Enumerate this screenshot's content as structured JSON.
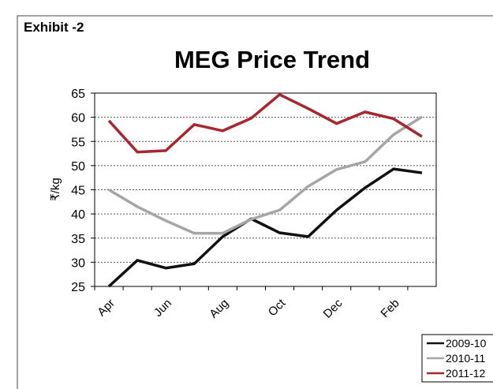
{
  "exhibit": "Exhibit -2",
  "chart_data": {
    "type": "line",
    "title": "MEG Price Trend",
    "y_label": "₹/kg",
    "categories": [
      "Apr",
      null,
      "Jun",
      null,
      "Aug",
      null,
      "Oct",
      null,
      "Dec",
      null,
      "Feb",
      null
    ],
    "series": [
      {
        "name": "2009-10",
        "color": "#111111",
        "values": [
          25,
          30.4,
          28.8,
          29.7,
          35.3,
          39,
          36.1,
          35.3,
          40.8,
          45.4,
          49.3,
          48.5
        ]
      },
      {
        "name": "2010-11",
        "color": "#a6a6a6",
        "values": [
          45,
          41.5,
          38.6,
          36,
          36,
          38.9,
          40.8,
          45.7,
          49.2,
          50.8,
          56.4,
          60.1
        ]
      },
      {
        "name": "2011-12",
        "color": "#a8262e",
        "values": [
          59.3,
          52.8,
          53.1,
          58.5,
          57.2,
          59.8,
          64.7,
          61.8,
          58.7,
          61.1,
          59.7,
          56
        ]
      }
    ],
    "ylim": [
      25,
      65
    ],
    "yticks": [
      25,
      30,
      35,
      40,
      45,
      50,
      55,
      60,
      65
    ],
    "grid": true,
    "legend": "bottom-right"
  }
}
